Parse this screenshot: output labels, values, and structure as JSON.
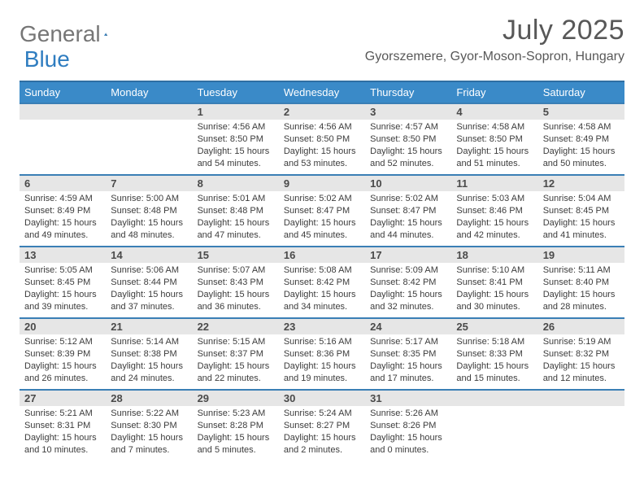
{
  "logo": {
    "part1": "General",
    "part2": "Blue"
  },
  "title": "July 2025",
  "location": "Gyorszemere, Gyor-Moson-Sopron, Hungary",
  "colors": {
    "header_bg": "#3a8ac8",
    "header_border": "#2f6fa3",
    "week_border": "#3a7fb5",
    "daynum_bg": "#e6e6e6",
    "text": "#3c3c3c",
    "title_text": "#585858",
    "logo_gray": "#767676",
    "logo_blue": "#2f7dc0"
  },
  "days_of_week": [
    "Sunday",
    "Monday",
    "Tuesday",
    "Wednesday",
    "Thursday",
    "Friday",
    "Saturday"
  ],
  "weeks": [
    [
      null,
      null,
      {
        "n": "1",
        "sr": "4:56 AM",
        "ss": "8:50 PM",
        "dl": "15 hours and 54 minutes."
      },
      {
        "n": "2",
        "sr": "4:56 AM",
        "ss": "8:50 PM",
        "dl": "15 hours and 53 minutes."
      },
      {
        "n": "3",
        "sr": "4:57 AM",
        "ss": "8:50 PM",
        "dl": "15 hours and 52 minutes."
      },
      {
        "n": "4",
        "sr": "4:58 AM",
        "ss": "8:50 PM",
        "dl": "15 hours and 51 minutes."
      },
      {
        "n": "5",
        "sr": "4:58 AM",
        "ss": "8:49 PM",
        "dl": "15 hours and 50 minutes."
      }
    ],
    [
      {
        "n": "6",
        "sr": "4:59 AM",
        "ss": "8:49 PM",
        "dl": "15 hours and 49 minutes."
      },
      {
        "n": "7",
        "sr": "5:00 AM",
        "ss": "8:48 PM",
        "dl": "15 hours and 48 minutes."
      },
      {
        "n": "8",
        "sr": "5:01 AM",
        "ss": "8:48 PM",
        "dl": "15 hours and 47 minutes."
      },
      {
        "n": "9",
        "sr": "5:02 AM",
        "ss": "8:47 PM",
        "dl": "15 hours and 45 minutes."
      },
      {
        "n": "10",
        "sr": "5:02 AM",
        "ss": "8:47 PM",
        "dl": "15 hours and 44 minutes."
      },
      {
        "n": "11",
        "sr": "5:03 AM",
        "ss": "8:46 PM",
        "dl": "15 hours and 42 minutes."
      },
      {
        "n": "12",
        "sr": "5:04 AM",
        "ss": "8:45 PM",
        "dl": "15 hours and 41 minutes."
      }
    ],
    [
      {
        "n": "13",
        "sr": "5:05 AM",
        "ss": "8:45 PM",
        "dl": "15 hours and 39 minutes."
      },
      {
        "n": "14",
        "sr": "5:06 AM",
        "ss": "8:44 PM",
        "dl": "15 hours and 37 minutes."
      },
      {
        "n": "15",
        "sr": "5:07 AM",
        "ss": "8:43 PM",
        "dl": "15 hours and 36 minutes."
      },
      {
        "n": "16",
        "sr": "5:08 AM",
        "ss": "8:42 PM",
        "dl": "15 hours and 34 minutes."
      },
      {
        "n": "17",
        "sr": "5:09 AM",
        "ss": "8:42 PM",
        "dl": "15 hours and 32 minutes."
      },
      {
        "n": "18",
        "sr": "5:10 AM",
        "ss": "8:41 PM",
        "dl": "15 hours and 30 minutes."
      },
      {
        "n": "19",
        "sr": "5:11 AM",
        "ss": "8:40 PM",
        "dl": "15 hours and 28 minutes."
      }
    ],
    [
      {
        "n": "20",
        "sr": "5:12 AM",
        "ss": "8:39 PM",
        "dl": "15 hours and 26 minutes."
      },
      {
        "n": "21",
        "sr": "5:14 AM",
        "ss": "8:38 PM",
        "dl": "15 hours and 24 minutes."
      },
      {
        "n": "22",
        "sr": "5:15 AM",
        "ss": "8:37 PM",
        "dl": "15 hours and 22 minutes."
      },
      {
        "n": "23",
        "sr": "5:16 AM",
        "ss": "8:36 PM",
        "dl": "15 hours and 19 minutes."
      },
      {
        "n": "24",
        "sr": "5:17 AM",
        "ss": "8:35 PM",
        "dl": "15 hours and 17 minutes."
      },
      {
        "n": "25",
        "sr": "5:18 AM",
        "ss": "8:33 PM",
        "dl": "15 hours and 15 minutes."
      },
      {
        "n": "26",
        "sr": "5:19 AM",
        "ss": "8:32 PM",
        "dl": "15 hours and 12 minutes."
      }
    ],
    [
      {
        "n": "27",
        "sr": "5:21 AM",
        "ss": "8:31 PM",
        "dl": "15 hours and 10 minutes."
      },
      {
        "n": "28",
        "sr": "5:22 AM",
        "ss": "8:30 PM",
        "dl": "15 hours and 7 minutes."
      },
      {
        "n": "29",
        "sr": "5:23 AM",
        "ss": "8:28 PM",
        "dl": "15 hours and 5 minutes."
      },
      {
        "n": "30",
        "sr": "5:24 AM",
        "ss": "8:27 PM",
        "dl": "15 hours and 2 minutes."
      },
      {
        "n": "31",
        "sr": "5:26 AM",
        "ss": "8:26 PM",
        "dl": "15 hours and 0 minutes."
      },
      null,
      null
    ]
  ],
  "labels": {
    "sunrise": "Sunrise:",
    "sunset": "Sunset:",
    "daylight": "Daylight:"
  }
}
